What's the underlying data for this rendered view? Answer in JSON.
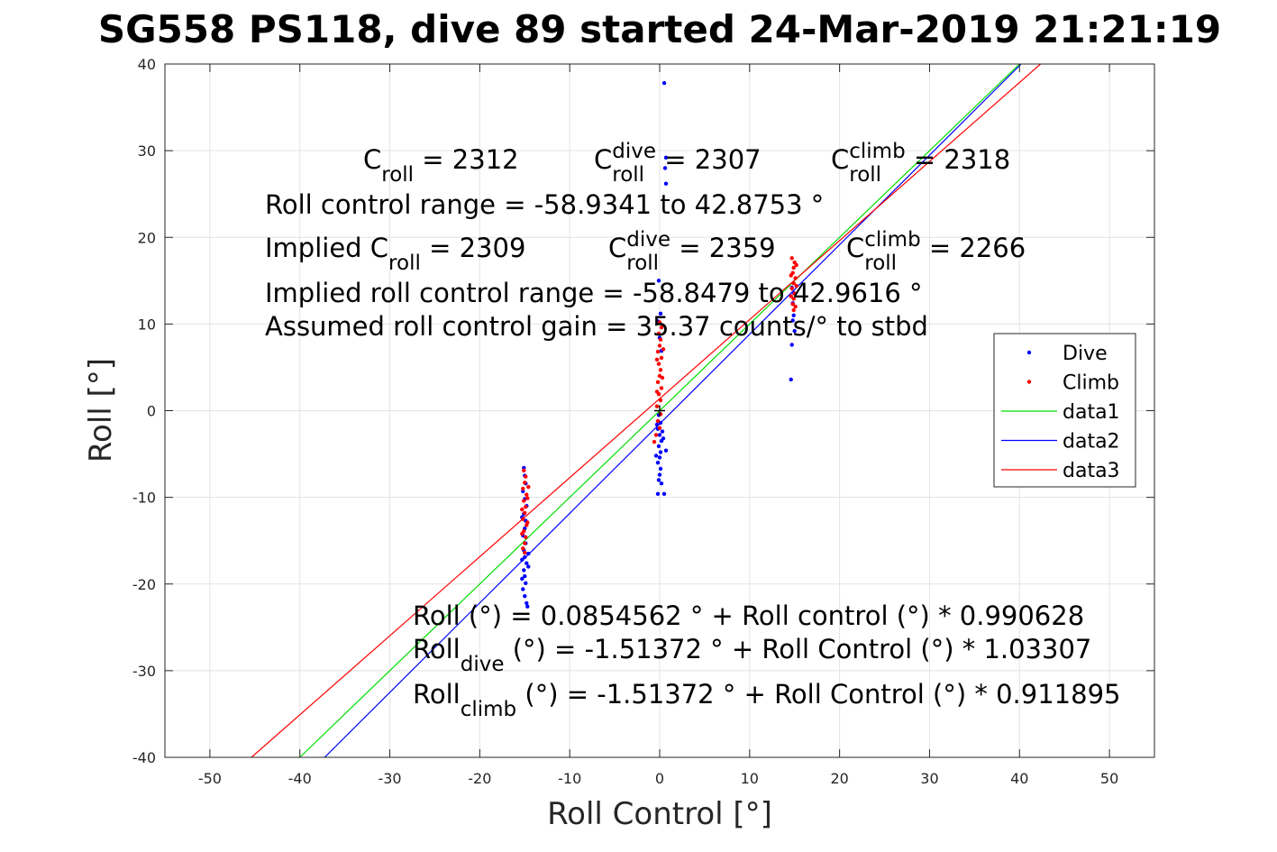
{
  "chart_data": {
    "type": "scatter",
    "title": "SG558 PS118, dive 89 started 24-Mar-2019 21:21:19",
    "xlabel": "Roll Control [°]",
    "ylabel": "Roll [°]",
    "xlim": [
      -55,
      55
    ],
    "ylim": [
      -40,
      40
    ],
    "xticks": [
      -50,
      -40,
      -30,
      -20,
      -10,
      0,
      10,
      20,
      30,
      40,
      50
    ],
    "yticks": [
      -40,
      -30,
      -20,
      -10,
      0,
      10,
      20,
      30,
      40
    ],
    "xtick_labels": [
      "-50",
      "-40",
      "-30",
      "-20",
      "-10",
      "0",
      "10",
      "20",
      "30",
      "40",
      "50"
    ],
    "ytick_labels": [
      "-40",
      "-30",
      "-20",
      "-10",
      "0",
      "10",
      "20",
      "30",
      "40"
    ],
    "grid": true,
    "legend_position": "right",
    "colors": {
      "dive": "#0000ff",
      "climb": "#ff0000",
      "data1": "#00dd00",
      "data2": "#0000ff",
      "data3": "#ff0000"
    },
    "series": [
      {
        "name": "Dive",
        "mode": "markers",
        "color": "#0000ff",
        "points": [
          [
            -15.1,
            -6.6
          ],
          [
            -15.0,
            -7.5
          ],
          [
            -14.9,
            -8.4
          ],
          [
            -15.2,
            -9.3
          ],
          [
            -15.0,
            -10.2
          ],
          [
            -14.8,
            -11.0
          ],
          [
            -15.1,
            -11.9
          ],
          [
            -14.9,
            -12.7
          ],
          [
            -15.0,
            -13.6
          ],
          [
            -15.2,
            -14.4
          ],
          [
            -14.9,
            -15.3
          ],
          [
            -15.1,
            -16.1
          ],
          [
            -15.0,
            -16.9
          ],
          [
            -14.8,
            -17.6
          ],
          [
            -15.1,
            -18.4
          ],
          [
            -15.0,
            -19.1
          ],
          [
            -14.9,
            -19.9
          ],
          [
            -15.2,
            -20.6
          ],
          [
            -15.0,
            -21.4
          ],
          [
            -14.8,
            -22.2
          ],
          [
            -14.7,
            -22.6
          ],
          [
            -15.3,
            -19.4
          ],
          [
            -14.6,
            -18.0
          ],
          [
            -15.3,
            -17.2
          ],
          [
            -14.6,
            -16.5
          ],
          [
            -15.3,
            -12.3
          ],
          [
            0.5,
            37.8
          ],
          [
            0.7,
            29.2
          ],
          [
            0.6,
            28.0
          ],
          [
            0.7,
            26.2
          ],
          [
            -0.1,
            15.0
          ],
          [
            0.1,
            11.2
          ],
          [
            -0.2,
            10.3
          ],
          [
            0.0,
            8.4
          ],
          [
            0.2,
            6.9
          ],
          [
            -0.1,
            -0.5
          ],
          [
            0.1,
            -1.4
          ],
          [
            -0.2,
            -2.1
          ],
          [
            0.0,
            -2.8
          ],
          [
            0.2,
            -3.5
          ],
          [
            -0.1,
            -4.1
          ],
          [
            0.1,
            -4.8
          ],
          [
            0.0,
            -5.4
          ],
          [
            -0.2,
            -6.0
          ],
          [
            0.1,
            -6.7
          ],
          [
            0.0,
            -7.4
          ],
          [
            -0.1,
            -8.0
          ],
          [
            0.2,
            -8.4
          ],
          [
            -0.2,
            -9.6
          ],
          [
            0.5,
            -9.6
          ],
          [
            0.7,
            -4.6
          ],
          [
            -0.4,
            -5.2
          ],
          [
            0.4,
            -3.2
          ],
          [
            -0.3,
            -1.6
          ],
          [
            0.3,
            -2.4
          ],
          [
            14.7,
            14.2
          ],
          [
            14.8,
            12.4
          ],
          [
            14.9,
            11.0
          ],
          [
            14.8,
            10.4
          ],
          [
            14.7,
            7.6
          ],
          [
            14.6,
            3.6
          ],
          [
            15.0,
            9.2
          ],
          [
            14.9,
            13.6
          ]
        ]
      },
      {
        "name": "Climb",
        "mode": "markers",
        "color": "#ff0000",
        "points": [
          [
            -15.1,
            -6.9
          ],
          [
            -14.9,
            -7.6
          ],
          [
            -15.0,
            -8.3
          ],
          [
            -15.2,
            -9.0
          ],
          [
            -14.8,
            -9.7
          ],
          [
            -15.1,
            -10.4
          ],
          [
            -14.9,
            -11.1
          ],
          [
            -15.0,
            -11.8
          ],
          [
            -15.2,
            -12.5
          ],
          [
            -14.8,
            -13.2
          ],
          [
            -15.1,
            -13.9
          ],
          [
            -14.9,
            -14.6
          ],
          [
            -15.0,
            -15.3
          ],
          [
            -15.2,
            -15.9
          ],
          [
            -15.0,
            -16.4
          ],
          [
            -14.7,
            -10.1
          ],
          [
            -15.3,
            -11.4
          ],
          [
            -14.7,
            -12.9
          ],
          [
            -15.3,
            -14.2
          ],
          [
            -14.6,
            -8.8
          ],
          [
            -0.3,
            0.5
          ],
          [
            0.1,
            1.2
          ],
          [
            -0.1,
            1.9
          ],
          [
            0.2,
            2.6
          ],
          [
            -0.2,
            3.3
          ],
          [
            0.0,
            4.0
          ],
          [
            0.1,
            4.7
          ],
          [
            -0.1,
            5.4
          ],
          [
            0.2,
            6.1
          ],
          [
            -0.2,
            6.8
          ],
          [
            0.0,
            7.5
          ],
          [
            0.1,
            8.2
          ],
          [
            -0.1,
            8.9
          ],
          [
            0.2,
            9.6
          ],
          [
            0.0,
            10.2
          ],
          [
            0.1,
            -0.4
          ],
          [
            -0.2,
            -1.2
          ],
          [
            0.0,
            -2.0
          ],
          [
            -0.4,
            -2.8
          ],
          [
            -0.6,
            -3.6
          ],
          [
            0.3,
            3.8
          ],
          [
            -0.3,
            5.9
          ],
          [
            0.4,
            7.1
          ],
          [
            -0.3,
            2.2
          ],
          [
            14.8,
            12.3
          ],
          [
            14.9,
            12.9
          ],
          [
            15.0,
            13.5
          ],
          [
            14.7,
            14.1
          ],
          [
            14.9,
            14.7
          ],
          [
            15.1,
            15.3
          ],
          [
            14.8,
            15.9
          ],
          [
            14.9,
            16.5
          ],
          [
            15.0,
            17.1
          ],
          [
            14.7,
            17.6
          ],
          [
            14.9,
            11.6
          ],
          [
            15.1,
            12.0
          ],
          [
            15.2,
            14.4
          ],
          [
            14.6,
            15.6
          ],
          [
            15.2,
            16.8
          ],
          [
            14.6,
            13.2
          ]
        ]
      },
      {
        "name": "data1",
        "mode": "line",
        "color": "#00dd00",
        "x": [
          -40.0,
          40.0
        ],
        "y": [
          -40.0,
          40.0
        ]
      },
      {
        "name": "data2",
        "mode": "line",
        "color": "#0000ff",
        "x": [
          -37.25,
          40.18
        ],
        "y": [
          -40.0,
          40.0
        ]
      },
      {
        "name": "data3",
        "mode": "line",
        "color": "#ff0000",
        "x": [
          -45.38,
          42.34
        ],
        "y": [
          -40.0,
          40.0
        ]
      }
    ],
    "center_marker": {
      "x": 0,
      "y": 0,
      "symbol": "+"
    },
    "annotations": {
      "croll_line": [
        {
          "base": "C",
          "sub": "roll",
          "sup": "",
          "value": " = 2312"
        },
        {
          "base": "C",
          "sub": "roll",
          "sup": "dive",
          "value": " = 2307"
        },
        {
          "base": "C",
          "sub": "roll",
          "sup": "climb",
          "value": " = 2318"
        }
      ],
      "control_range": "Roll control range = -58.9341 to 42.8753 °",
      "implied_line": [
        {
          "base": "Implied C",
          "sub": "roll",
          "sup": "",
          "value": " = 2309"
        },
        {
          "base": "C",
          "sub": "roll",
          "sup": "dive",
          "value": " = 2359"
        },
        {
          "base": "C",
          "sub": "roll",
          "sup": "climb",
          "value": " = 2266"
        }
      ],
      "implied_range": "Implied roll control range = -58.8479 to 42.9616 °",
      "gain": "Assumed roll control gain = 35.37 counts/° to stbd",
      "fit_all": "Roll (°) = 0.0854562 ° + Roll control (°) * 0.990628",
      "fit_dive": {
        "base": "Roll",
        "sub": "dive",
        "rest": " (°) = -1.51372 ° + Roll Control (°) * 1.03307"
      },
      "fit_climb": {
        "base": "Roll",
        "sub": "climb",
        "rest": " (°) = -1.51372 ° + Roll Control (°) * 0.911895"
      }
    }
  }
}
